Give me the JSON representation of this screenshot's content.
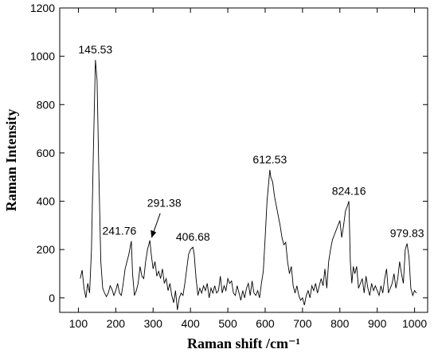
{
  "chart_data": {
    "type": "line",
    "x_label": "Raman shift /cm⁻¹",
    "y_label": "Raman Intensity",
    "color": "#000000",
    "xlim": [
      50,
      1035
    ],
    "ylim": [
      -60,
      1200
    ],
    "xticks": [
      100,
      200,
      300,
      400,
      500,
      600,
      700,
      800,
      900,
      1000
    ],
    "yticks": [
      0,
      200,
      400,
      600,
      800,
      1000,
      1200
    ],
    "x": [
      105,
      110,
      115,
      120,
      125,
      130,
      135,
      140,
      145.53,
      150,
      155,
      160,
      165,
      170,
      175,
      180,
      185,
      190,
      195,
      200,
      205,
      210,
      215,
      220,
      225,
      230,
      235,
      241.76,
      245,
      250,
      255,
      260,
      265,
      270,
      275,
      280,
      285,
      291.38,
      295,
      300,
      305,
      310,
      315,
      320,
      325,
      330,
      335,
      340,
      345,
      350,
      355,
      360,
      365,
      370,
      375,
      380,
      385,
      390,
      395,
      400,
      406.68,
      410,
      415,
      420,
      425,
      430,
      435,
      440,
      445,
      450,
      455,
      460,
      465,
      470,
      475,
      480,
      485,
      490,
      495,
      500,
      505,
      510,
      515,
      520,
      525,
      530,
      535,
      540,
      545,
      550,
      555,
      560,
      565,
      570,
      575,
      580,
      585,
      590,
      595,
      600,
      605,
      612.53,
      615,
      620,
      625,
      630,
      635,
      640,
      645,
      650,
      655,
      660,
      665,
      670,
      675,
      680,
      685,
      690,
      695,
      700,
      705,
      710,
      715,
      720,
      725,
      730,
      735,
      740,
      745,
      750,
      755,
      760,
      765,
      770,
      775,
      780,
      785,
      790,
      795,
      800,
      805,
      810,
      815,
      820,
      824.16,
      828,
      832,
      836,
      840,
      845,
      850,
      855,
      860,
      865,
      870,
      875,
      880,
      885,
      890,
      895,
      900,
      905,
      910,
      915,
      920,
      925,
      930,
      935,
      940,
      945,
      950,
      955,
      960,
      965,
      970,
      975,
      979.83,
      985,
      990,
      995,
      1000,
      1005
    ],
    "values": [
      80,
      115,
      40,
      0,
      60,
      20,
      200,
      600,
      985,
      900,
      500,
      150,
      40,
      20,
      5,
      20,
      50,
      35,
      10,
      30,
      60,
      20,
      10,
      60,
      120,
      150,
      180,
      235,
      100,
      10,
      30,
      60,
      130,
      90,
      80,
      150,
      200,
      238,
      180,
      120,
      150,
      90,
      110,
      80,
      120,
      60,
      80,
      30,
      60,
      10,
      -20,
      30,
      -50,
      0,
      20,
      10,
      60,
      120,
      180,
      200,
      210,
      180,
      80,
      10,
      40,
      20,
      50,
      30,
      60,
      0,
      40,
      20,
      50,
      20,
      30,
      90,
      20,
      50,
      30,
      80,
      60,
      70,
      20,
      10,
      50,
      20,
      -10,
      30,
      0,
      40,
      60,
      10,
      70,
      20,
      10,
      30,
      0,
      60,
      110,
      250,
      400,
      530,
      500,
      480,
      420,
      380,
      340,
      300,
      250,
      220,
      230,
      150,
      100,
      130,
      50,
      20,
      50,
      10,
      -10,
      0,
      -30,
      10,
      30,
      0,
      50,
      30,
      60,
      20,
      50,
      80,
      50,
      120,
      40,
      150,
      200,
      240,
      260,
      280,
      300,
      320,
      250,
      300,
      360,
      380,
      400,
      150,
      60,
      130,
      100,
      130,
      40,
      60,
      80,
      20,
      90,
      40,
      10,
      60,
      30,
      50,
      30,
      10,
      50,
      20,
      80,
      120,
      20,
      40,
      60,
      100,
      40,
      80,
      150,
      100,
      60,
      200,
      225,
      170,
      40,
      10,
      30,
      20
    ],
    "annotations": [
      {
        "x": 145.53,
        "y": 985,
        "label": "145.53"
      },
      {
        "x": 241.76,
        "y": 235,
        "label": "241.76"
      },
      {
        "x": 291.38,
        "y": 238,
        "label": "291.38"
      },
      {
        "x": 406.68,
        "y": 210,
        "label": "406.68"
      },
      {
        "x": 612.53,
        "y": 530,
        "label": "612.53"
      },
      {
        "x": 824.16,
        "y": 400,
        "label": "824.16"
      },
      {
        "x": 979.83,
        "y": 225,
        "label": "979.83"
      }
    ]
  }
}
